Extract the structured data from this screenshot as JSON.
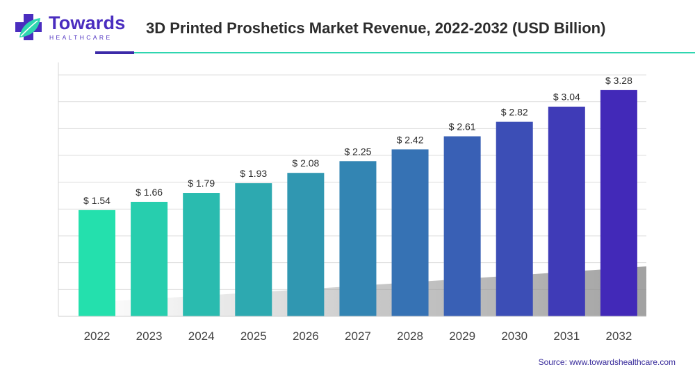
{
  "brand": {
    "name": "Towards",
    "tagline": "HEALTHCARE",
    "primary_color": "#4a2dbf",
    "accent_color": "#2fd6b0"
  },
  "source_text": "Source: www.towardshealthcare.com",
  "chart_data": {
    "type": "bar",
    "title": "3D Printed Proshetics Market Revenue, 2022-2032 (USD Billion)",
    "xlabel": "",
    "ylabel": "",
    "categories": [
      "2022",
      "2023",
      "2024",
      "2025",
      "2026",
      "2027",
      "2028",
      "2029",
      "2030",
      "2031",
      "2032"
    ],
    "values": [
      1.54,
      1.66,
      1.79,
      1.93,
      2.08,
      2.25,
      2.42,
      2.61,
      2.82,
      3.04,
      3.28
    ],
    "value_labels": [
      "$ 1.54",
      "$ 1.66",
      "$ 1.79",
      "$ 1.93",
      "$ 2.08",
      "$ 2.25",
      "$ 2.42",
      "$ 2.61",
      "$ 2.82",
      "$ 3.04",
      "$ 3.28"
    ],
    "ylim": [
      0,
      3.5
    ],
    "grid": true,
    "bar_color_start": "#24e0ad",
    "bar_color_end": "#4229b8"
  }
}
